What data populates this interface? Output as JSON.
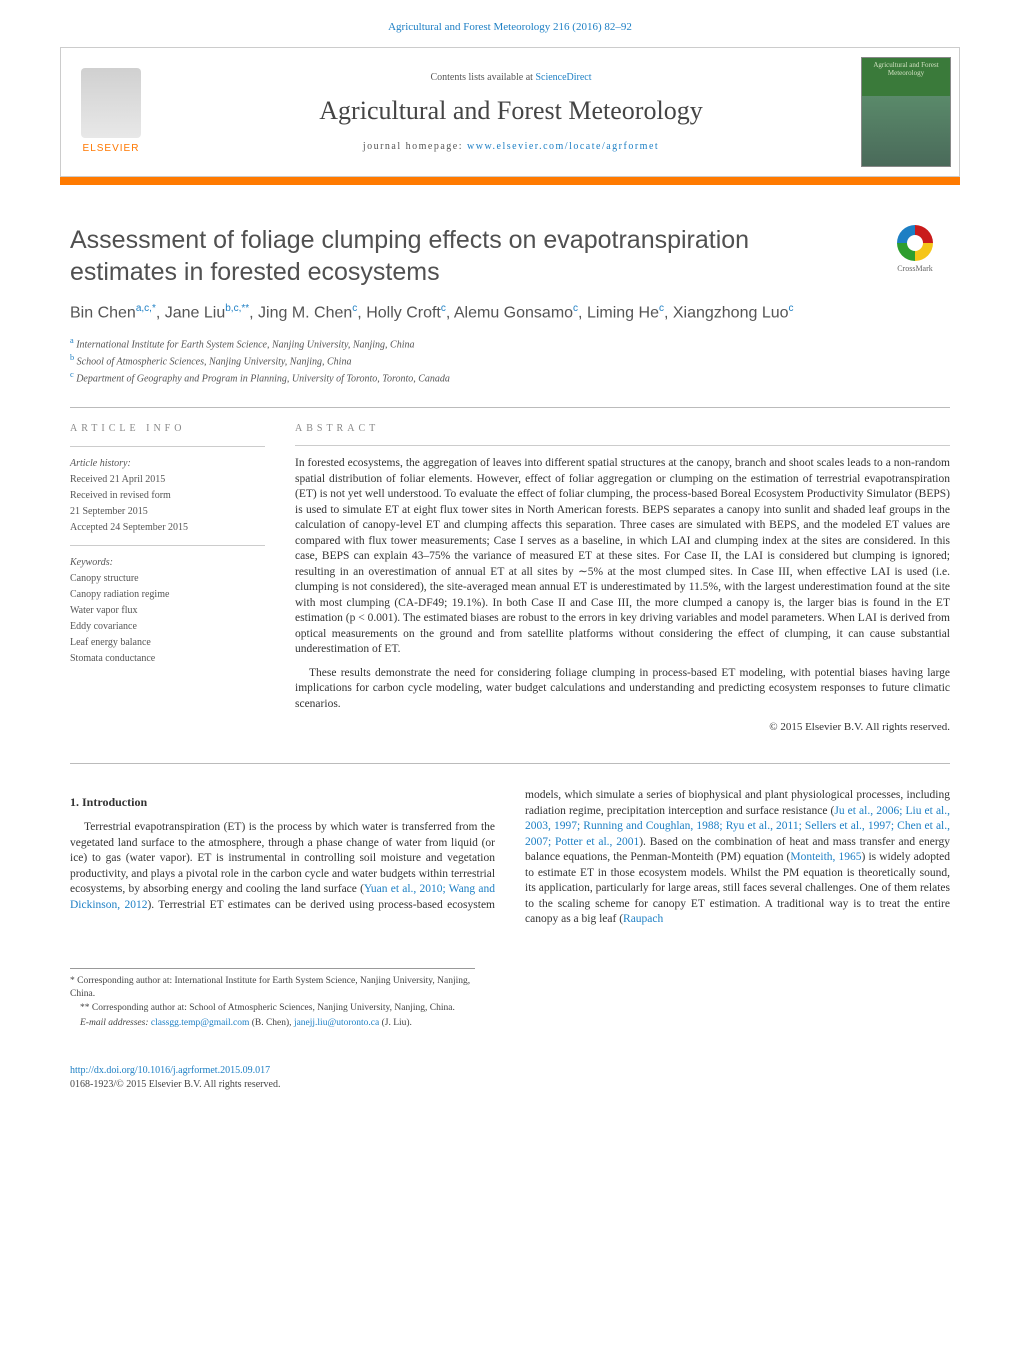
{
  "topCitation": {
    "journal_link_text": "Agricultural and Forest Meteorology 216 (2016) 82–92"
  },
  "header": {
    "elsevier_label": "ELSEVIER",
    "contents_prefix": "Contents lists available at ",
    "contents_link": "ScienceDirect",
    "journal_name": "Agricultural and Forest Meteorology",
    "homepage_prefix": "journal homepage: ",
    "homepage_link": "www.elsevier.com/locate/agrformet",
    "cover_text": "Agricultural and Forest Meteorology"
  },
  "crossmark_label": "CrossMark",
  "title": "Assessment of foliage clumping effects on evapotranspiration estimates in forested ecosystems",
  "authors_html": "Bin Chen<sup>a,c,*</sup>, Jane Liu<sup>b,c,**</sup>, Jing M. Chen<sup>c</sup>, Holly Croft<sup>c</sup>, Alemu Gonsamo<sup>c</sup>, Liming He<sup>c</sup>, Xiangzhong Luo<sup>c</sup>",
  "affiliations": [
    {
      "sup": "a",
      "text": "International Institute for Earth System Science, Nanjing University, Nanjing, China"
    },
    {
      "sup": "b",
      "text": "School of Atmospheric Sciences, Nanjing University, Nanjing, China"
    },
    {
      "sup": "c",
      "text": "Department of Geography and Program in Planning, University of Toronto, Toronto, Canada"
    }
  ],
  "articleInfo": {
    "head": "ARTICLE INFO",
    "history_label": "Article history:",
    "history": [
      "Received 21 April 2015",
      "Received in revised form",
      "21 September 2015",
      "Accepted 24 September 2015"
    ],
    "keywords_label": "Keywords:",
    "keywords": [
      "Canopy structure",
      "Canopy radiation regime",
      "Water vapor flux",
      "Eddy covariance",
      "Leaf energy balance",
      "Stomata conductance"
    ]
  },
  "abstract": {
    "head": "ABSTRACT",
    "p1": "In forested ecosystems, the aggregation of leaves into different spatial structures at the canopy, branch and shoot scales leads to a non-random spatial distribution of foliar elements. However, effect of foliar aggregation or clumping on the estimation of terrestrial evapotranspiration (ET) is not yet well understood. To evaluate the effect of foliar clumping, the process-based Boreal Ecosystem Productivity Simulator (BEPS) is used to simulate ET at eight flux tower sites in North American forests. BEPS separates a canopy into sunlit and shaded leaf groups in the calculation of canopy-level ET and clumping affects this separation. Three cases are simulated with BEPS, and the modeled ET values are compared with flux tower measurements; Case I serves as a baseline, in which LAI and clumping index at the sites are considered. In this case, BEPS can explain 43–75% the variance of measured ET at these sites. For Case II, the LAI is considered but clumping is ignored; resulting in an overestimation of annual ET at all sites by ∼5% at the most clumped sites. In Case III, when effective LAI is used (i.e. clumping is not considered), the site-averaged mean annual ET is underestimated by 11.5%, with the largest underestimation found at the site with most clumping (CA-DF49; 19.1%). In both Case II and Case III, the more clumped a canopy is, the larger bias is found in the ET estimation (p < 0.001). The estimated biases are robust to the errors in key driving variables and model parameters. When LAI is derived from optical measurements on the ground and from satellite platforms without considering the effect of clumping, it can cause substantial underestimation of ET.",
    "p2": "These results demonstrate the need for considering foliage clumping in process-based ET modeling, with potential biases having large implications for carbon cycle modeling, water budget calculations and understanding and predicting ecosystem responses to future climatic scenarios.",
    "copyright": "© 2015 Elsevier B.V. All rights reserved."
  },
  "intro": {
    "heading": "1. Introduction",
    "para_pre": "Terrestrial evapotranspiration (ET) is the process by which water is transferred from the vegetated land surface to the atmosphere, through a phase change of water from liquid (or ice) to gas (water vapor). ET is instrumental in controlling soil moisture and vegetation productivity, and plays a pivotal role in the carbon cycle",
    "para_post1": "and water budgets within terrestrial ecosystems, by absorbing energy and cooling the land surface (",
    "ref1": "Yuan et al., 2010; Wang and Dickinson, 2012",
    "para_post2": "). Terrestrial ET estimates can be derived using process-based ecosystem models, which simulate a series of biophysical and plant physiological processes, including radiation regime, precipitation interception and surface resistance (",
    "ref2": "Ju et al., 2006; Liu et al., 2003, 1997; Running and Coughlan, 1988; Ryu et al., 2011; Sellers et al., 1997; Chen et al., 2007; Potter et al., 2001",
    "para_post3": "). Based on the combination of heat and mass transfer and energy balance equations, the Penman-Monteith (PM) equation (",
    "ref3": "Monteith, 1965",
    "para_post4": ") is widely adopted to estimate ET in those ecosystem models. Whilst the PM equation is theoretically sound, its application, particularly for large areas, still faces several challenges. One of them relates to the scaling scheme for canopy ET estimation. A traditional way is to treat the entire canopy as a big leaf (",
    "ref4": "Raupach"
  },
  "footnotes": {
    "f1_pre": "* Corresponding author at: International Institute for Earth System Science, Nanjing University, Nanjing, China.",
    "f2_pre": "** Corresponding author at: School of Atmospheric Sciences, Nanjing University, Nanjing, China.",
    "email_label": "E-mail addresses: ",
    "email1": "classgg.temp@gmail.com",
    "email1_who": " (B. Chen), ",
    "email2": "janejj.liu@utoronto.ca",
    "email2_who": " (J. Liu)."
  },
  "bottom": {
    "doi": "http://dx.doi.org/10.1016/j.agrformet.2015.09.017",
    "issn_line": "0168-1923/© 2015 Elsevier B.V. All rights reserved."
  },
  "colors": {
    "link": "#1d7fc4",
    "accent": "#ff7a00",
    "text": "#333333",
    "muted": "#555555",
    "rule": "#bbbbbb"
  }
}
